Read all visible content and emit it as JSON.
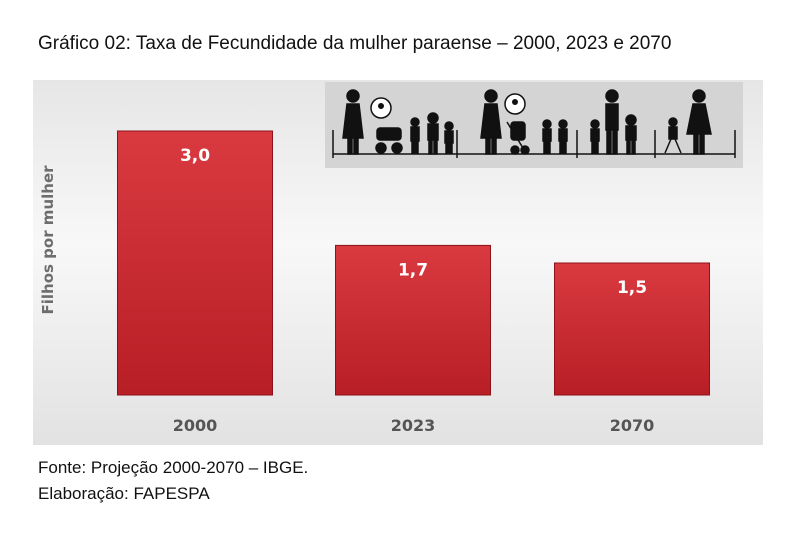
{
  "title": "Gráfico 02: Taxa de Fecundidade da mulher paraense – 2000, 2023 e 2070",
  "chart_data": {
    "type": "bar",
    "categories": [
      "2000",
      "2023",
      "2070"
    ],
    "values": [
      3.0,
      1.7,
      1.5
    ],
    "value_labels": [
      "3,0",
      "1,7",
      "1,5"
    ],
    "ylabel": "Filhos por mulher",
    "ylim": [
      0,
      3.5
    ],
    "grid": false,
    "bar_color": "#c8232c",
    "label_color": "#ffffff"
  },
  "illustration": {
    "description_icons": [
      "family-group-icon",
      "baby-bubble-icon",
      "stroller-icon"
    ]
  },
  "footer": {
    "source": "Fonte: Projeção 2000-2070 – IBGE.",
    "credit": "Elaboração: FAPESPA"
  }
}
